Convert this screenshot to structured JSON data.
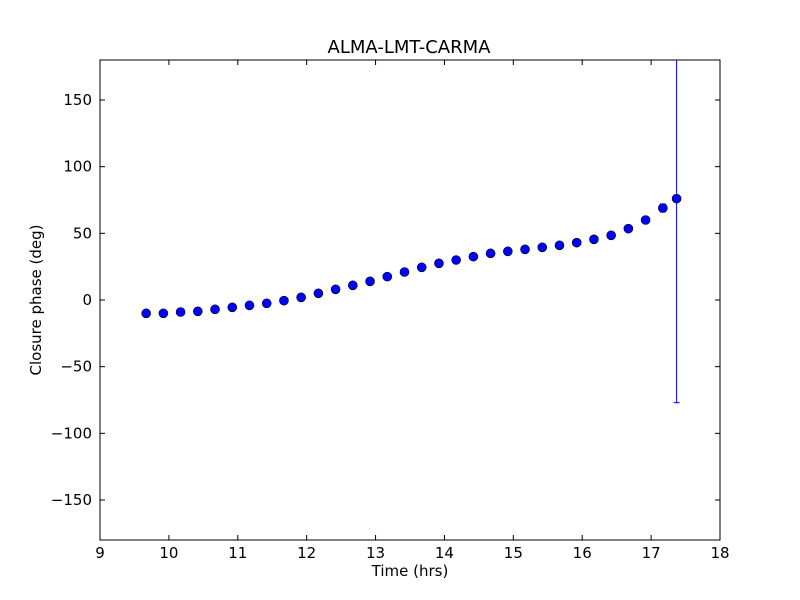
{
  "chart_data": {
    "type": "scatter",
    "title": "ALMA-LMT-CARMA",
    "xlabel": "Time (hrs)",
    "ylabel": "Closure phase (deg)",
    "xlim": [
      9,
      18
    ],
    "ylim": [
      -180,
      180
    ],
    "xticks": [
      9,
      10,
      11,
      12,
      13,
      14,
      15,
      16,
      17,
      18
    ],
    "yticks": [
      -150,
      -100,
      -50,
      0,
      50,
      100,
      150
    ],
    "ytick_labels": [
      "−150",
      "−100",
      "−50",
      "0",
      "50",
      "100",
      "150"
    ],
    "grid": false,
    "marker_color": "#0000ff",
    "errorbar_color": "#0000ff",
    "series": [
      {
        "points": [
          {
            "x": 9.67,
            "y": -10,
            "err": 0.5
          },
          {
            "x": 9.92,
            "y": -10,
            "err": 0.5
          },
          {
            "x": 10.17,
            "y": -9,
            "err": 0.5
          },
          {
            "x": 10.42,
            "y": -8.5,
            "err": 0.5
          },
          {
            "x": 10.67,
            "y": -7,
            "err": 0.5
          },
          {
            "x": 10.92,
            "y": -5.5,
            "err": 0.5
          },
          {
            "x": 11.17,
            "y": -4,
            "err": 0.5
          },
          {
            "x": 11.42,
            "y": -2.5,
            "err": 0.5
          },
          {
            "x": 11.67,
            "y": -0.5,
            "err": 0.5
          },
          {
            "x": 11.92,
            "y": 2,
            "err": 0.5
          },
          {
            "x": 12.17,
            "y": 5,
            "err": 0.5
          },
          {
            "x": 12.42,
            "y": 8,
            "err": 0.5
          },
          {
            "x": 12.67,
            "y": 11,
            "err": 0.5
          },
          {
            "x": 12.92,
            "y": 14,
            "err": 0.5
          },
          {
            "x": 13.17,
            "y": 17.5,
            "err": 0.5
          },
          {
            "x": 13.42,
            "y": 21,
            "err": 0.5
          },
          {
            "x": 13.67,
            "y": 24.5,
            "err": 0.5
          },
          {
            "x": 13.92,
            "y": 27.5,
            "err": 0.5
          },
          {
            "x": 14.17,
            "y": 30,
            "err": 0.5
          },
          {
            "x": 14.42,
            "y": 32.5,
            "err": 0.5
          },
          {
            "x": 14.67,
            "y": 35,
            "err": 0.5
          },
          {
            "x": 14.92,
            "y": 36.5,
            "err": 0.5
          },
          {
            "x": 15.17,
            "y": 38,
            "err": 0.5
          },
          {
            "x": 15.42,
            "y": 39.5,
            "err": 0.5
          },
          {
            "x": 15.67,
            "y": 41,
            "err": 0.5
          },
          {
            "x": 15.92,
            "y": 43,
            "err": 0.5
          },
          {
            "x": 16.17,
            "y": 45.5,
            "err": 0.5
          },
          {
            "x": 16.42,
            "y": 48.5,
            "err": 0.5
          },
          {
            "x": 16.67,
            "y": 53.5,
            "err": 1
          },
          {
            "x": 16.92,
            "y": 60,
            "err": 2
          },
          {
            "x": 17.17,
            "y": 69,
            "err": 3
          },
          {
            "x": 17.37,
            "y": 76,
            "err": 153
          }
        ]
      }
    ]
  }
}
